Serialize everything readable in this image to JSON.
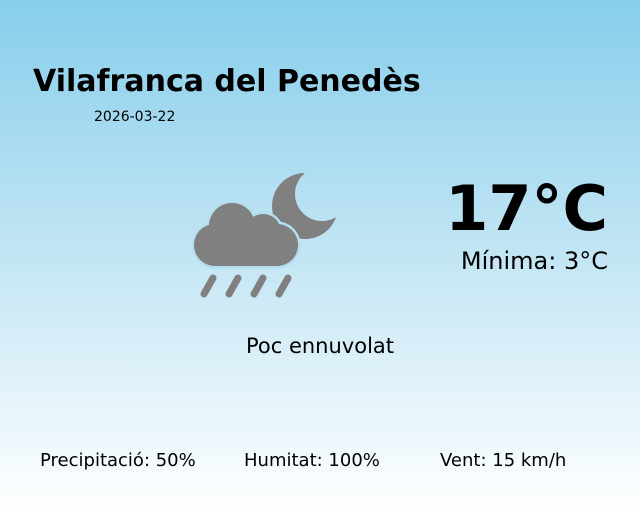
{
  "location": {
    "city": "Vilafranca del Penedès",
    "date": "2026-03-22"
  },
  "current": {
    "temperature": "17°C",
    "minimum": "Mínima: 3°C",
    "condition": "Poc ennuvolat",
    "icon": "cloud-rain-moon-icon",
    "icon_color": "#808080"
  },
  "stats": {
    "precipitation": "Precipitació: 50%",
    "humidity": "Humitat: 100%",
    "wind": "Vent: 15 km/h"
  },
  "colors": {
    "sky_top": "#87ceeb",
    "sky_bottom": "#ffffff"
  }
}
